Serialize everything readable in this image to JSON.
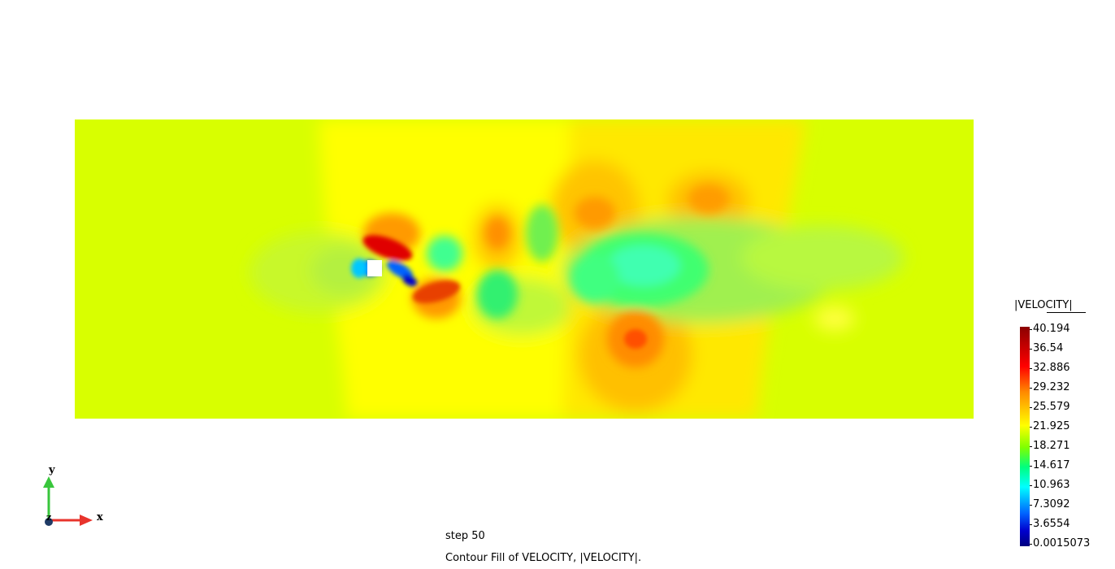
{
  "legend": {
    "title": "|VELOCITY|",
    "ticks": [
      "40.194",
      "36.54",
      "32.886",
      "29.232",
      "25.579",
      "21.925",
      "18.271",
      "14.617",
      "10.963",
      "7.3092",
      "3.6554",
      "0.0015073"
    ]
  },
  "axes": {
    "x_label": "x",
    "y_label": "y",
    "z_label": "z"
  },
  "caption": {
    "step": "step 50",
    "description": "Contour Fill of VELOCITY, |VELOCITY|."
  },
  "colors": {
    "background": "#ffffff",
    "field_base": "#d8ff00",
    "max": "#8b0000",
    "min": "#00007f"
  }
}
